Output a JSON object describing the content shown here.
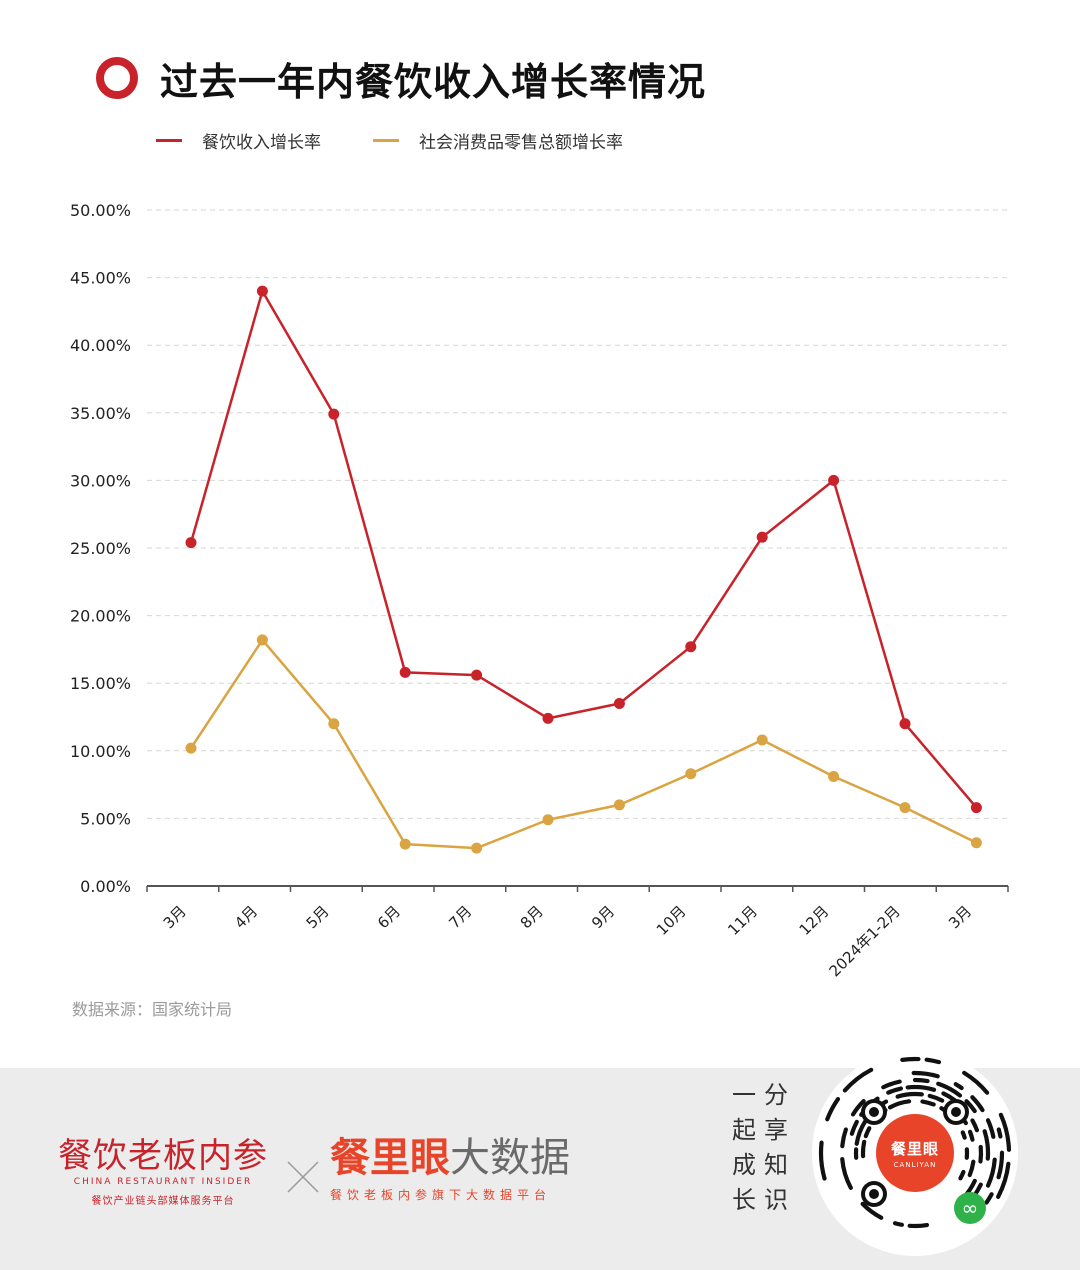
{
  "title": "过去一年内餐饮收入增长率情况",
  "colors": {
    "accent": "#c8222a",
    "series1": "#c8222a",
    "series2": "#d9a441",
    "brand_orange": "#e8442a"
  },
  "chart_data": {
    "type": "line",
    "title": "过去一年内餐饮收入增长率情况",
    "xlabel": "",
    "ylabel": "",
    "categories": [
      "3月",
      "4月",
      "5月",
      "6月",
      "7月",
      "8月",
      "9月",
      "10月",
      "11月",
      "12月",
      "2024年1-2月",
      "3月"
    ],
    "y_ticks": [
      "0.00%",
      "5.00%",
      "10.00%",
      "15.00%",
      "20.00%",
      "25.00%",
      "30.00%",
      "35.00%",
      "40.00%",
      "45.00%",
      "50.00%"
    ],
    "ylim": [
      0,
      50
    ],
    "grid": true,
    "legend_position": "top-left",
    "series": [
      {
        "name": "餐饮收入增长率",
        "color": "#c8222a",
        "values": [
          25.4,
          44.0,
          34.9,
          15.8,
          15.6,
          12.4,
          13.5,
          17.7,
          25.8,
          30.0,
          12.0,
          5.8
        ]
      },
      {
        "name": "社会消费品零售总额增长率",
        "color": "#d9a441",
        "values": [
          10.2,
          18.2,
          12.0,
          3.1,
          2.8,
          4.9,
          6.0,
          8.3,
          10.8,
          8.1,
          5.8,
          3.2
        ]
      }
    ]
  },
  "source": "数据来源：国家统计局",
  "footer": {
    "brand1_name": "餐饮老板内参",
    "brand1_en": "CHINA RESTAURANT INSIDER",
    "brand1_slogan": "餐饮产业链头部媒体服务平台",
    "brand2_name_red": "餐里眼",
    "brand2_name_gray": "大数据",
    "brand2_slogan": "餐饮老板内参旗下大数据平台",
    "share_text": "一分起享成知长识",
    "qr_center_name": "餐里眼",
    "qr_center_en": "CANLIYAN",
    "icons": [
      "close-icon",
      "qr-code-icon",
      "mini-program-icon"
    ]
  }
}
